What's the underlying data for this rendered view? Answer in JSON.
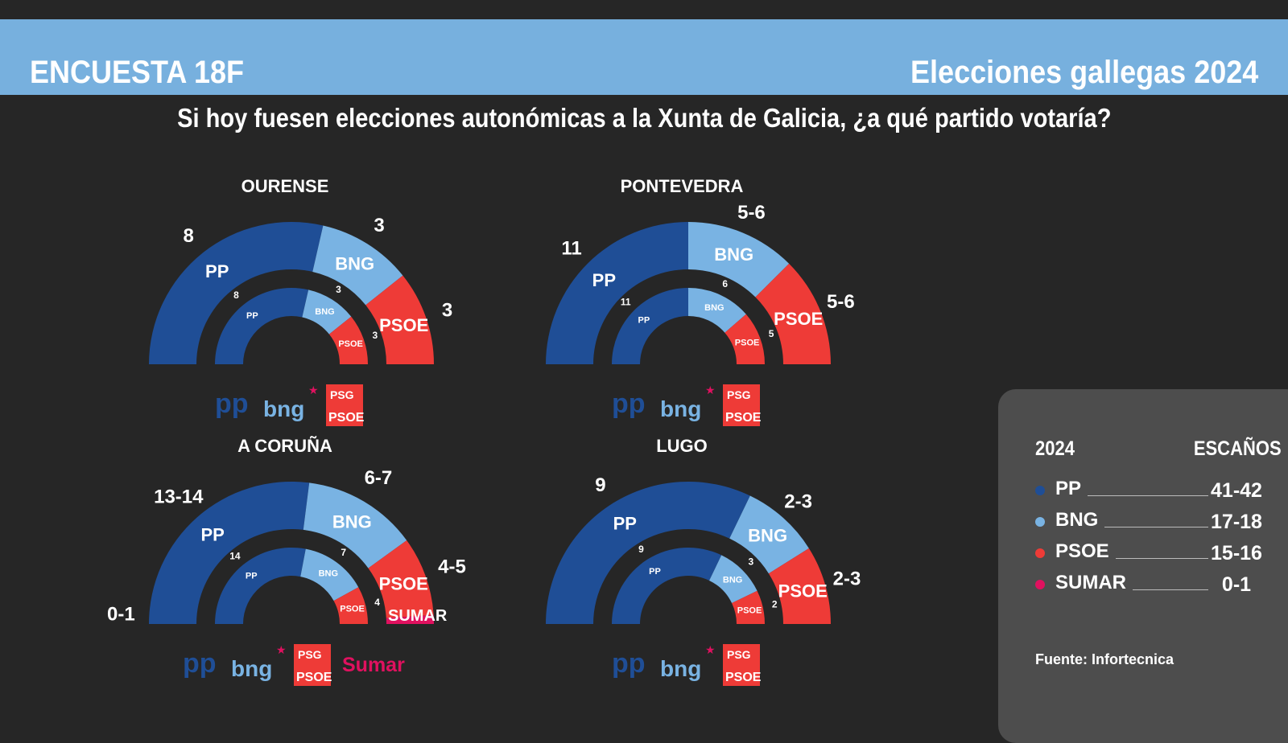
{
  "header": {
    "left_title": "ENCUESTA 18F",
    "right_title": "Elecciones gallegas 2024"
  },
  "question": "Si hoy fuesen elecciones autonómicas a la Xunta de Galicia, ¿a qué partido votaría?",
  "colors": {
    "PP": "#1f4e96",
    "BNG": "#79b3e3",
    "PSOE": "#ee3b37",
    "SUMAR": "#e0115f",
    "background": "#262626",
    "band": "#77b0de",
    "panel": "#4d4d4d"
  },
  "chart_data": [
    {
      "type": "pie",
      "subtype": "semicircle",
      "title": "OURENSE",
      "outer": [
        {
          "party": "PP",
          "label": "8",
          "value": 8
        },
        {
          "party": "BNG",
          "label": "3",
          "value": 3
        },
        {
          "party": "PSOE",
          "label": "3",
          "value": 3
        }
      ],
      "inner": [
        {
          "party": "PP",
          "label": "8",
          "value": 8
        },
        {
          "party": "BNG",
          "label": "3",
          "value": 3
        },
        {
          "party": "PSOE",
          "label": "3",
          "value": 3
        }
      ],
      "logos": [
        "PP",
        "BNG",
        "PSOE"
      ]
    },
    {
      "type": "pie",
      "subtype": "semicircle",
      "title": "PONTEVEDRA",
      "outer": [
        {
          "party": "PP",
          "label": "11",
          "value": 11
        },
        {
          "party": "BNG",
          "label": "5-6",
          "value": 5.5
        },
        {
          "party": "PSOE",
          "label": "5-6",
          "value": 5.5
        }
      ],
      "inner": [
        {
          "party": "PP",
          "label": "11",
          "value": 11
        },
        {
          "party": "BNG",
          "label": "6",
          "value": 6
        },
        {
          "party": "PSOE",
          "label": "5",
          "value": 5
        }
      ],
      "logos": [
        "PP",
        "BNG",
        "PSOE"
      ]
    },
    {
      "type": "pie",
      "subtype": "semicircle",
      "title": "A CORUÑA",
      "outer": [
        {
          "party": "PP",
          "label": "13-14",
          "value": 13.5
        },
        {
          "party": "BNG",
          "label": "6-7",
          "value": 6.5
        },
        {
          "party": "PSOE",
          "label": "4-5",
          "value": 4.5
        },
        {
          "party": "SUMAR",
          "label": "0-1",
          "value": 0.5
        }
      ],
      "inner": [
        {
          "party": "PP",
          "label": "14",
          "value": 14
        },
        {
          "party": "BNG",
          "label": "7",
          "value": 7
        },
        {
          "party": "PSOE",
          "label": "4",
          "value": 4
        }
      ],
      "logos": [
        "PP",
        "BNG",
        "PSOE",
        "SUMAR"
      ]
    },
    {
      "type": "pie",
      "subtype": "semicircle",
      "title": "LUGO",
      "outer": [
        {
          "party": "PP",
          "label": "9",
          "value": 9
        },
        {
          "party": "BNG",
          "label": "2-3",
          "value": 2.5
        },
        {
          "party": "PSOE",
          "label": "2-3",
          "value": 2.5
        }
      ],
      "inner": [
        {
          "party": "PP",
          "label": "9",
          "value": 9
        },
        {
          "party": "BNG",
          "label": "3",
          "value": 3
        },
        {
          "party": "PSOE",
          "label": "2",
          "value": 2
        }
      ],
      "logos": [
        "PP",
        "BNG",
        "PSOE"
      ]
    }
  ],
  "logo_text": {
    "PP": "pp",
    "BNG": "bng",
    "PSOE_top": "PSG",
    "PSOE_bottom": "PSOE",
    "SUMAR": "Sumar"
  },
  "legend": {
    "year": "2024",
    "seats_header": "ESCAÑOS",
    "source": "Fuente: Infortecnica",
    "rows": [
      {
        "party": "PP",
        "seats": "41-42"
      },
      {
        "party": "BNG",
        "seats": "17-18"
      },
      {
        "party": "PSOE",
        "seats": "15-16"
      },
      {
        "party": "SUMAR",
        "seats": "0-1"
      }
    ]
  }
}
